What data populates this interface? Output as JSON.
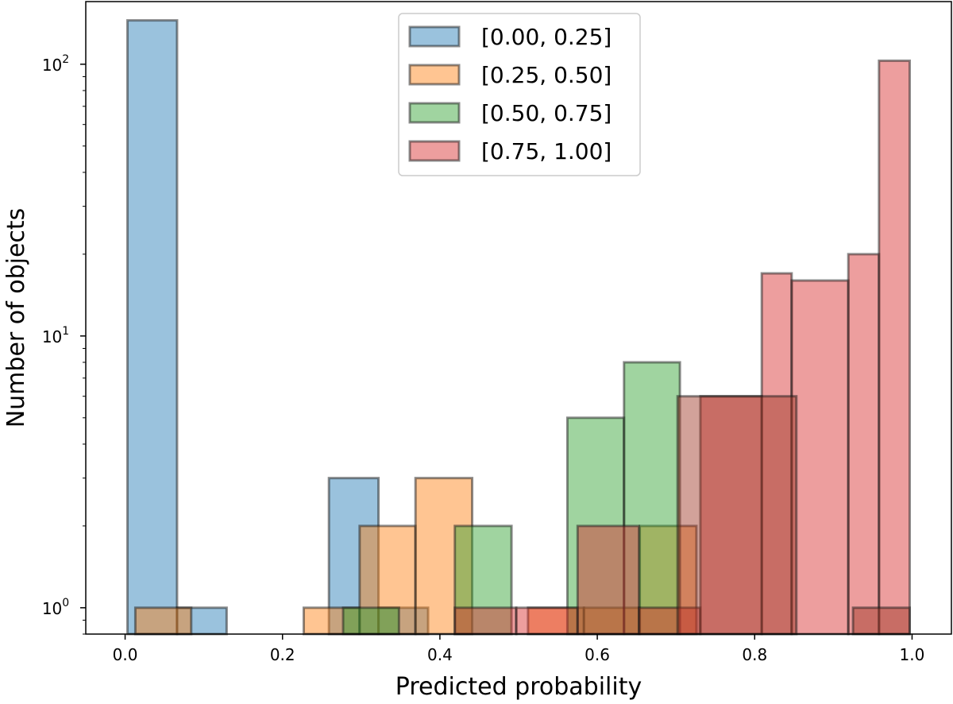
{
  "chart_data": {
    "type": "histogram",
    "title": "",
    "xlabel": "Predicted probability",
    "ylabel": "Number of objects",
    "xlim": [
      -0.05,
      1.05
    ],
    "ylim": [
      0.8,
      170
    ],
    "yscale": "log",
    "xticks": [
      {
        "value": 0.0,
        "label": "0.0"
      },
      {
        "value": 0.2,
        "label": "0.2"
      },
      {
        "value": 0.4,
        "label": "0.4"
      },
      {
        "value": 0.6,
        "label": "0.6"
      },
      {
        "value": 0.8,
        "label": "0.8"
      },
      {
        "value": 1.0,
        "label": "1.0"
      }
    ],
    "yticks": [
      {
        "value": 1,
        "base": "10",
        "exp": "0"
      },
      {
        "value": 10,
        "base": "10",
        "exp": "1"
      },
      {
        "value": 100,
        "base": "10",
        "exp": "2"
      }
    ],
    "legend_position": "upper-center",
    "series": [
      {
        "name": "[0.00, 0.25]",
        "color": "#1f77b4",
        "bins": [
          {
            "x0": 0.003,
            "x1": 0.066,
            "count": 145
          },
          {
            "x0": 0.066,
            "x1": 0.129,
            "count": 1
          },
          {
            "x0": 0.259,
            "x1": 0.322,
            "count": 3
          },
          {
            "x0": 0.322,
            "x1": 0.385,
            "count": 1
          }
        ]
      },
      {
        "name": "[0.25, 0.50]",
        "color": "#ff7f0e",
        "bins": [
          {
            "x0": 0.013,
            "x1": 0.084,
            "count": 1
          },
          {
            "x0": 0.227,
            "x1": 0.298,
            "count": 1
          },
          {
            "x0": 0.298,
            "x1": 0.369,
            "count": 2
          },
          {
            "x0": 0.369,
            "x1": 0.441,
            "count": 3
          },
          {
            "x0": 0.512,
            "x1": 0.583,
            "count": 1
          },
          {
            "x0": 0.583,
            "x1": 0.654,
            "count": 1
          },
          {
            "x0": 0.654,
            "x1": 0.726,
            "count": 2
          }
        ]
      },
      {
        "name": "[0.50, 0.75]",
        "color": "#2ca02c",
        "bins": [
          {
            "x0": 0.277,
            "x1": 0.348,
            "count": 1
          },
          {
            "x0": 0.419,
            "x1": 0.491,
            "count": 2
          },
          {
            "x0": 0.562,
            "x1": 0.634,
            "count": 5
          },
          {
            "x0": 0.634,
            "x1": 0.705,
            "count": 8
          }
        ]
      },
      {
        "name": "[0.75, 1.00]",
        "color": "#d62728",
        "bins": [
          {
            "x0": 0.419,
            "x1": 0.497,
            "count": 1
          },
          {
            "x0": 0.497,
            "x1": 0.575,
            "count": 1
          },
          {
            "x0": 0.575,
            "x1": 0.653,
            "count": 2
          },
          {
            "x0": 0.653,
            "x1": 0.731,
            "count": 1
          },
          {
            "x0": 0.731,
            "x1": 0.809,
            "count": 6
          },
          {
            "x0": 0.809,
            "x1": 0.847,
            "count": 17
          },
          {
            "x0": 0.847,
            "x1": 0.919,
            "count": 16
          },
          {
            "x0": 0.919,
            "x1": 0.958,
            "count": 20
          },
          {
            "x0": 0.958,
            "x1": 0.997,
            "count": 103
          }
        ]
      },
      {
        "name": "",
        "color": "#9c3020",
        "bins": [
          {
            "x0": 0.702,
            "x1": 0.853,
            "count": 6
          },
          {
            "x0": 0.925,
            "x1": 0.997,
            "count": 1
          }
        ]
      }
    ]
  }
}
